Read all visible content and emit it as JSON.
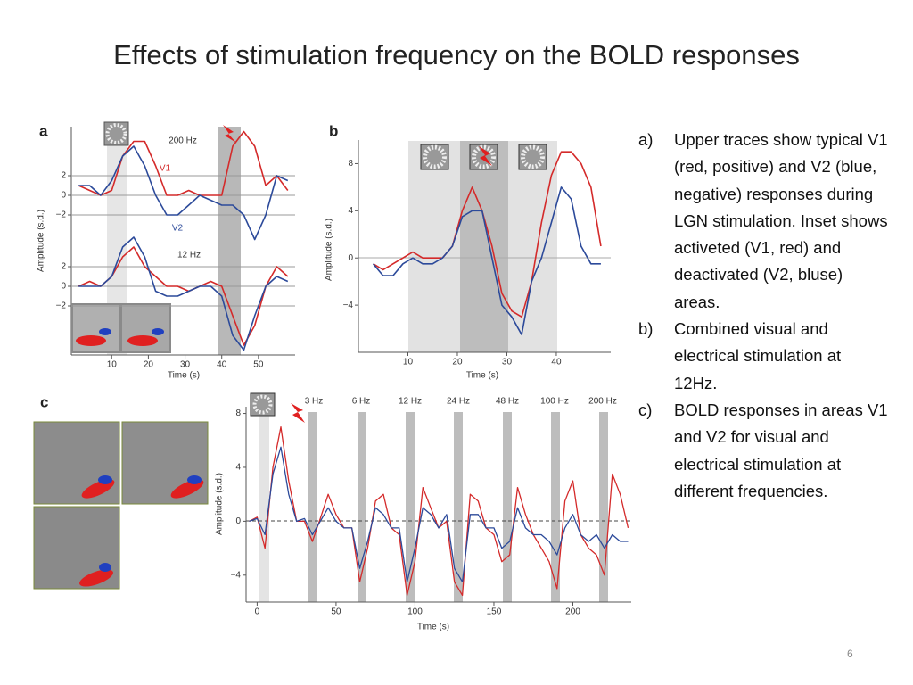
{
  "title": "Effects of stimulation frequency on the BOLD responses",
  "notes": [
    {
      "label": "a)",
      "text": "Upper traces show typical V1 (red, positive) and V2 (blue, negative) responses during LGN stimulation. Inset shows activeted (V1, red) and deactivated (V2, bluse) areas."
    },
    {
      "label": "b)",
      "text": "Combined visual and electrical stimulation at 12Hz."
    },
    {
      "label": "c)",
      "text": "BOLD responses in areas V1 and V2 for visual and electrical stimulation at different frequencies."
    }
  ],
  "page_number": "6",
  "chart_data": [
    {
      "type": "line",
      "panel": "a",
      "annotations": [
        "200 Hz",
        "V1",
        "V2"
      ],
      "x": [
        1,
        4,
        7,
        10,
        13,
        16,
        19,
        22,
        25,
        28,
        31,
        34,
        37,
        40,
        43,
        46,
        49,
        52,
        55,
        58
      ],
      "series": [
        {
          "name": "V1",
          "color": "#d42a2a",
          "values": [
            1,
            0.5,
            0,
            0.5,
            4,
            5.5,
            5.5,
            3,
            0,
            0,
            0.5,
            0,
            0,
            0,
            5,
            6.5,
            5,
            1,
            2,
            0.5
          ]
        },
        {
          "name": "V2",
          "color": "#2c4a9a",
          "values": [
            1,
            1,
            0,
            1.5,
            4,
            5,
            3,
            0,
            -2,
            -2,
            -1,
            0,
            -0.5,
            -1,
            -1,
            -2,
            -4.5,
            -2,
            2,
            1.5
          ]
        }
      ],
      "xlim": [
        -1,
        60
      ],
      "ylim": [
        -3,
        7
      ],
      "yticks": [
        {
          "value": -2,
          "label": "−2"
        },
        0,
        2
      ],
      "grid": true
    },
    {
      "type": "line",
      "annotations": [
        "12 Hz"
      ],
      "xlabel": "Time (s)",
      "ylabel": "Amplitude (s.d.)",
      "x": [
        1,
        4,
        7,
        10,
        13,
        16,
        19,
        22,
        25,
        28,
        31,
        34,
        37,
        40,
        43,
        46,
        49,
        52,
        55,
        58
      ],
      "series": [
        {
          "name": "V1",
          "color": "#d42a2a",
          "values": [
            0,
            0.5,
            0,
            1,
            3,
            4,
            2,
            1,
            0,
            0,
            -0.5,
            0,
            0.5,
            0,
            -3,
            -6,
            -4,
            0,
            2,
            1
          ]
        },
        {
          "name": "V2",
          "color": "#2c4a9a",
          "values": [
            0,
            0,
            0,
            1,
            4,
            5,
            3,
            -0.5,
            -1,
            -1,
            -0.5,
            0,
            0,
            -1,
            -5,
            -6.5,
            -3,
            0,
            1,
            0.5
          ]
        }
      ],
      "xlim": [
        -1,
        60
      ],
      "ylim": [
        -7,
        6
      ],
      "yticks": [
        {
          "value": -2,
          "label": "−2"
        },
        0,
        2
      ],
      "xticks": [
        10,
        20,
        30,
        40,
        50
      ],
      "grid": true
    },
    {
      "type": "line",
      "panel": "b",
      "xlabel": "Time (s)",
      "ylabel": "Amplitude (s.d.)",
      "x": [
        3,
        5,
        7,
        9,
        11,
        13,
        15,
        17,
        19,
        21,
        23,
        25,
        27,
        29,
        31,
        33,
        35,
        37,
        39,
        41,
        43,
        45,
        47,
        49
      ],
      "series": [
        {
          "name": "V1",
          "color": "#d42a2a",
          "values": [
            -0.5,
            -1,
            -0.5,
            0,
            0.5,
            0,
            0,
            0,
            1,
            4,
            6,
            4,
            1,
            -3,
            -4.5,
            -5,
            -2,
            3,
            7,
            9,
            9,
            8,
            6,
            1
          ]
        },
        {
          "name": "V2",
          "color": "#2c4a9a",
          "values": [
            -0.5,
            -1.5,
            -1.5,
            -0.5,
            0,
            -0.5,
            -0.5,
            0,
            1,
            3.5,
            4,
            4,
            0,
            -4,
            -5,
            -6.5,
            -2,
            0,
            3,
            6,
            5,
            1,
            -0.5,
            -0.5
          ]
        }
      ],
      "xlim": [
        0,
        51
      ],
      "ylim": [
        -8,
        10
      ],
      "yticks": [
        {
          "value": -4,
          "label": "−4"
        },
        0,
        4,
        8
      ],
      "xticks": [
        10,
        20,
        30,
        40
      ],
      "grid": false
    },
    {
      "type": "line",
      "panel": "c",
      "xlabel": "Time (s)",
      "ylabel": "Amplitude (s.d.)",
      "annotations": [
        "3 Hz",
        "6 Hz",
        "12 Hz",
        "24 Hz",
        "48 Hz",
        "100 Hz",
        "200 Hz"
      ],
      "x": [
        -5,
        0,
        5,
        10,
        15,
        20,
        25,
        30,
        35,
        40,
        45,
        50,
        55,
        60,
        65,
        70,
        75,
        80,
        85,
        90,
        95,
        100,
        105,
        110,
        115,
        120,
        125,
        130,
        135,
        140,
        145,
        150,
        155,
        160,
        165,
        170,
        175,
        180,
        185,
        190,
        195,
        200,
        205,
        210,
        215,
        220,
        225,
        230,
        235
      ],
      "series": [
        {
          "name": "V1",
          "color": "#d42a2a",
          "values": [
            0,
            0.3,
            -2,
            4,
            7,
            3,
            0,
            0,
            -1.5,
            0.2,
            2,
            0.5,
            -0.5,
            -0.5,
            -4.5,
            -2,
            1.5,
            2,
            -0.5,
            -1,
            -5.5,
            -3,
            2.5,
            1,
            -0.5,
            0,
            -4.5,
            -5.5,
            2,
            1.5,
            -0.5,
            -1,
            -3,
            -2.5,
            2.5,
            0.5,
            -1,
            -2,
            -3,
            -5,
            1.5,
            3,
            -1,
            -2,
            -2.5,
            -4,
            3.5,
            2,
            -0.5
          ]
        },
        {
          "name": "V2",
          "color": "#2c4a9a",
          "values": [
            0,
            0.2,
            -1,
            3.5,
            5.5,
            2,
            0,
            0.2,
            -1,
            0,
            1,
            0,
            -0.5,
            -0.5,
            -3.5,
            -1.5,
            1,
            0.5,
            -0.5,
            -0.5,
            -4.5,
            -2,
            1,
            0.5,
            -0.5,
            0.5,
            -3.5,
            -4.5,
            0.5,
            0.5,
            -0.5,
            -0.5,
            -2,
            -1.5,
            1,
            -0.5,
            -1,
            -1,
            -1.5,
            -2.5,
            -0.5,
            0.5,
            -1,
            -1.5,
            -1,
            -2,
            -1,
            -1.5,
            -1.5
          ]
        }
      ],
      "xlim": [
        -7,
        237
      ],
      "ylim": [
        -6,
        8.5
      ],
      "yticks": [
        {
          "value": -4,
          "label": "−4"
        },
        0,
        4,
        8
      ],
      "xticks": [
        0,
        50,
        100,
        150,
        200
      ],
      "grid": false
    }
  ]
}
